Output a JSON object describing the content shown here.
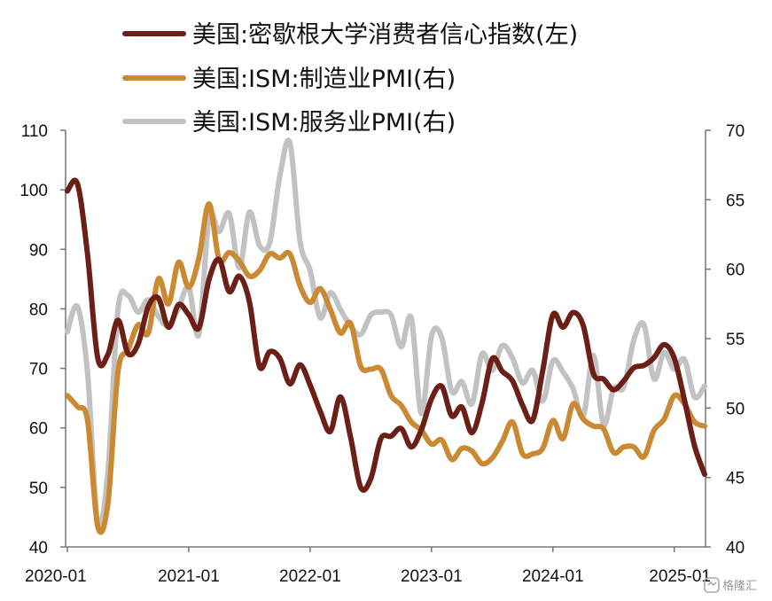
{
  "chart_data": {
    "type": "line",
    "legend": [
      {
        "name": "美国:密歇根大学消费者信心指数(左)",
        "color": "#6b1f16",
        "axis": "left"
      },
      {
        "name": "美国:ISM:制造业PMI(右)",
        "color": "#c98a33",
        "axis": "right"
      },
      {
        "name": "美国:ISM:服务业PMI(右)",
        "color": "#c2c2c2",
        "axis": "right"
      }
    ],
    "legend_position": "top",
    "grid": false,
    "x_ticks": [
      "2020-01",
      "2021-01",
      "2022-01",
      "2023-01",
      "2024-01",
      "2025-01"
    ],
    "left_axis": {
      "min": 40,
      "max": 110,
      "ticks": [
        40,
        50,
        60,
        70,
        80,
        90,
        100,
        110
      ]
    },
    "right_axis": {
      "min": 40,
      "max": 70,
      "ticks": [
        40,
        45,
        50,
        55,
        60,
        65,
        70
      ]
    },
    "x": [
      "2020-01",
      "2020-02",
      "2020-03",
      "2020-04",
      "2020-05",
      "2020-06",
      "2020-07",
      "2020-08",
      "2020-09",
      "2020-10",
      "2020-11",
      "2020-12",
      "2021-01",
      "2021-02",
      "2021-03",
      "2021-04",
      "2021-05",
      "2021-06",
      "2021-07",
      "2021-08",
      "2021-09",
      "2021-10",
      "2021-11",
      "2021-12",
      "2022-01",
      "2022-02",
      "2022-03",
      "2022-04",
      "2022-05",
      "2022-06",
      "2022-07",
      "2022-08",
      "2022-09",
      "2022-10",
      "2022-11",
      "2022-12",
      "2023-01",
      "2023-02",
      "2023-03",
      "2023-04",
      "2023-05",
      "2023-06",
      "2023-07",
      "2023-08",
      "2023-09",
      "2023-10",
      "2023-11",
      "2023-12",
      "2024-01",
      "2024-02",
      "2024-03",
      "2024-04",
      "2024-05",
      "2024-06",
      "2024-07",
      "2024-08",
      "2024-09",
      "2024-10",
      "2024-11",
      "2024-12",
      "2025-01",
      "2025-02",
      "2025-03",
      "2025-04"
    ],
    "series": [
      {
        "name": "美国:密歇根大学消费者信心指数(左)",
        "axis": "left",
        "values": [
          99.8,
          101.0,
          89.1,
          71.8,
          72.3,
          78.1,
          72.5,
          74.1,
          80.4,
          81.8,
          76.9,
          80.7,
          79.0,
          76.8,
          84.9,
          88.3,
          82.9,
          85.5,
          81.2,
          70.3,
          72.8,
          71.7,
          67.4,
          70.6,
          67.2,
          62.8,
          59.4,
          65.2,
          58.4,
          50.0,
          51.5,
          58.2,
          58.6,
          59.9,
          56.8,
          59.7,
          64.9,
          67.0,
          62.0,
          63.5,
          59.2,
          64.2,
          71.6,
          69.5,
          67.9,
          63.8,
          61.3,
          69.7,
          79.0,
          76.9,
          79.4,
          77.2,
          69.1,
          68.2,
          66.4,
          67.9,
          70.1,
          70.5,
          71.8,
          74.0,
          71.7,
          64.7,
          57.0,
          52.2
        ]
      },
      {
        "name": "美国:ISM:制造业PMI(右)",
        "axis": "right",
        "values": [
          50.9,
          50.1,
          49.1,
          41.5,
          43.1,
          52.6,
          54.2,
          56.0,
          55.4,
          59.3,
          57.5,
          60.5,
          58.7,
          60.8,
          64.7,
          60.7,
          61.2,
          60.6,
          59.5,
          59.9,
          61.1,
          60.8,
          61.1,
          58.8,
          57.6,
          58.6,
          57.1,
          55.4,
          56.1,
          53.0,
          52.8,
          52.8,
          50.9,
          50.2,
          49.0,
          48.4,
          47.4,
          47.7,
          46.3,
          47.1,
          46.9,
          46.0,
          46.4,
          47.6,
          49.0,
          46.7,
          46.7,
          47.1,
          49.1,
          47.8,
          50.3,
          49.2,
          48.7,
          48.5,
          46.8,
          47.2,
          47.2,
          46.5,
          48.4,
          49.2,
          50.9,
          50.3,
          49.0,
          48.7
        ]
      },
      {
        "name": "美国:ISM:服务业PMI(右)",
        "axis": "right",
        "values": [
          55.5,
          57.3,
          52.5,
          41.8,
          45.4,
          57.1,
          58.1,
          56.9,
          57.8,
          56.6,
          55.9,
          57.2,
          58.7,
          55.3,
          63.7,
          62.7,
          64.0,
          60.1,
          64.1,
          61.7,
          61.9,
          66.7,
          69.1,
          62.0,
          59.9,
          56.5,
          58.3,
          57.1,
          55.9,
          55.3,
          56.7,
          56.9,
          56.7,
          54.4,
          56.5,
          49.6,
          55.2,
          55.1,
          51.2,
          51.9,
          50.3,
          53.9,
          52.7,
          54.5,
          53.6,
          51.8,
          52.7,
          50.5,
          53.4,
          52.6,
          51.4,
          49.4,
          53.8,
          48.8,
          51.4,
          51.5,
          54.9,
          56.0,
          52.1,
          54.0,
          52.8,
          53.5,
          50.8,
          51.6
        ]
      }
    ]
  },
  "watermark": {
    "text": "格隆汇"
  }
}
